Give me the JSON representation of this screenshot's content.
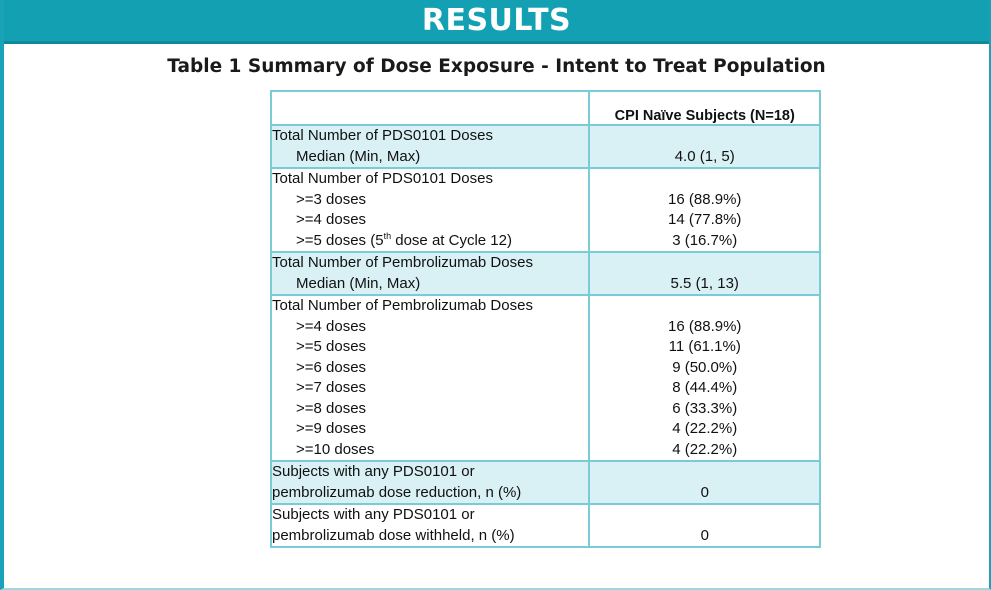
{
  "header": {
    "title": "RESULTS"
  },
  "table": {
    "caption": "Table 1 Summary of Dose Exposure - Intent to Treat Population",
    "column_header": "CPI Naïve Subjects (N=18)",
    "sections": [
      {
        "title": "Total Number of PDS0101 Doses",
        "rows": [
          {
            "label": "Median (Min, Max)",
            "value": "4.0 (1, 5)"
          }
        ]
      },
      {
        "title": "Total Number of PDS0101 Doses",
        "rows": [
          {
            "label": ">=3 doses",
            "value": "16 (88.9%)"
          },
          {
            "label": ">=4 doses",
            "value": "14 (77.8%)"
          },
          {
            "label": ">=5 doses (5",
            "sup": "th",
            "label_tail": " dose at Cycle 12)",
            "value": "3 (16.7%)"
          }
        ]
      },
      {
        "title": "Total Number of Pembrolizumab Doses",
        "rows": [
          {
            "label": "Median (Min, Max)",
            "value": "5.5 (1, 13)"
          }
        ]
      },
      {
        "title": "Total Number of Pembrolizumab Doses",
        "rows": [
          {
            "label": ">=4 doses",
            "value": "16 (88.9%)"
          },
          {
            "label": ">=5 doses",
            "value": "11 (61.1%)"
          },
          {
            "label": ">=6 doses",
            "value": "9 (50.0%)"
          },
          {
            "label": ">=7 doses",
            "value": "8 (44.4%)"
          },
          {
            "label": ">=8 doses",
            "value": "6 (33.3%)"
          },
          {
            "label": ">=9 doses",
            "value": "4 (22.2%)"
          },
          {
            "label": ">=10 doses",
            "value": "4 (22.2%)"
          }
        ]
      },
      {
        "title_lines": [
          "Subjects with any PDS0101 or",
          "pembrolizumab dose reduction, n (%)"
        ],
        "value": "0"
      },
      {
        "title_lines": [
          "Subjects with any PDS0101 or",
          "pembrolizumab dose withheld, n (%)"
        ],
        "value": "0"
      }
    ]
  },
  "colors": {
    "banner": "#13a0b3",
    "table_border": "#79cbd6",
    "shaded_row": "#d9f0f5"
  }
}
